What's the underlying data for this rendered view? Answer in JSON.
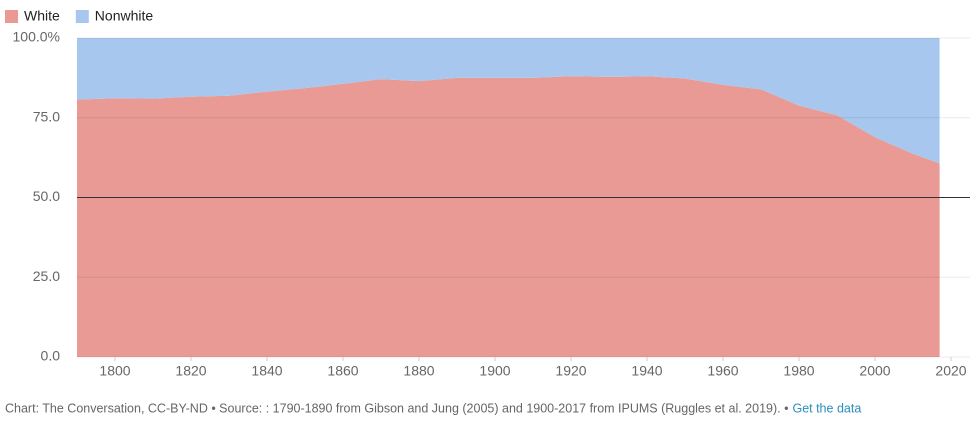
{
  "chart_data": {
    "type": "stacked_area",
    "x": [
      1790,
      1800,
      1810,
      1820,
      1830,
      1840,
      1850,
      1860,
      1870,
      1880,
      1890,
      1900,
      1910,
      1920,
      1930,
      1940,
      1950,
      1960,
      1970,
      1980,
      1990,
      2000,
      2010,
      2017
    ],
    "series": [
      {
        "name": "White",
        "color": "#e99a94",
        "values": [
          80.7,
          81.1,
          81.0,
          81.6,
          81.9,
          83.2,
          84.3,
          85.6,
          87.1,
          86.5,
          87.5,
          87.5,
          87.5,
          88.0,
          87.8,
          88.0,
          87.3,
          85.3,
          83.9,
          78.8,
          75.8,
          68.9,
          63.7,
          60.7
        ]
      },
      {
        "name": "Nonwhite",
        "color": "#a7c7ee",
        "values": [
          19.3,
          18.9,
          19.0,
          18.4,
          18.1,
          16.8,
          15.7,
          14.4,
          12.9,
          13.5,
          12.5,
          12.5,
          12.5,
          12.0,
          12.2,
          12.0,
          12.7,
          14.7,
          16.1,
          21.2,
          24.2,
          31.1,
          36.3,
          39.3
        ]
      }
    ],
    "xlim": [
      1790,
      2025
    ],
    "xticks": [
      1800,
      1820,
      1840,
      1860,
      1880,
      1900,
      1920,
      1940,
      1960,
      1980,
      2000,
      2020
    ],
    "ylim": [
      0,
      100
    ],
    "yticks": [
      {
        "value": 0,
        "label": "0.0"
      },
      {
        "value": 25,
        "label": "25.0"
      },
      {
        "value": 50,
        "label": "50.0"
      },
      {
        "value": 75,
        "label": "75.0"
      },
      {
        "value": 100,
        "label": "100.0%"
      }
    ],
    "reference_line": 50,
    "grid": true,
    "legend": "top-left",
    "source": "Chart: The Conversation, CC-BY-ND • Source: : 1790-1890 from Gibson and Jung (2005) and 1900-2017 from IPUMS (Ruggles et al. 2019). •",
    "link": "Get the data"
  }
}
